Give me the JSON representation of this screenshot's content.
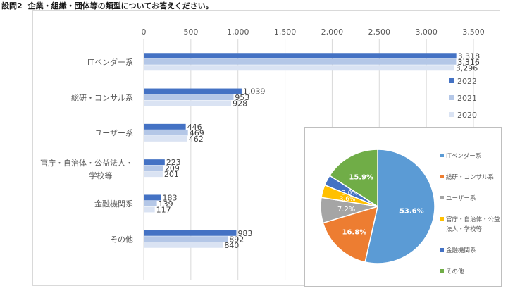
{
  "question": {
    "number": "設問2",
    "text": "企業・組織・団体等の類型についてお答えください。"
  },
  "chart_data": [
    {
      "type": "bar",
      "orientation": "horizontal",
      "categories": [
        "ITベンダー系",
        "総研・コンサル系",
        "ユーザー系",
        "官庁・自治体・公益法人・学校等",
        "金融機関系",
        "その他"
      ],
      "category_label_lines": [
        [
          "ITベンダー系"
        ],
        [
          "総研・コンサル系"
        ],
        [
          "ユーザー系"
        ],
        [
          "官庁・自治体・公益法人・",
          "学校等"
        ],
        [
          "金融機関系"
        ],
        [
          "その他"
        ]
      ],
      "series": [
        {
          "name": "2022",
          "values": [
            3318,
            1039,
            446,
            223,
            183,
            983
          ],
          "color": "#4472c4"
        },
        {
          "name": "2021",
          "values": [
            3316,
            953,
            469,
            209,
            139,
            892
          ],
          "color": "#b4c7e7"
        },
        {
          "name": "2020",
          "values": [
            3296,
            928,
            462,
            201,
            117,
            840
          ],
          "color": "#dae3f3"
        }
      ],
      "xlim": [
        0,
        3500
      ],
      "xticks": [
        0,
        500,
        1000,
        1500,
        2000,
        2500,
        3000,
        3500
      ],
      "xtick_labels": [
        "0",
        "500",
        "1,000",
        "1,500",
        "2,000",
        "2,500",
        "3,000",
        "3,500"
      ],
      "x_axis_position": "top",
      "grid": true,
      "legend": "right",
      "data_labels": true
    },
    {
      "type": "pie",
      "labels": [
        "ITベンダー系",
        "総研・コンサル系",
        "ユーザー系",
        "官庁・自治体・公益法人・学校等",
        "金融機関系",
        "その他"
      ],
      "legend_label_lines": [
        [
          "ITベンダー系"
        ],
        [
          "総研・コンサル系"
        ],
        [
          "ユーザー系"
        ],
        [
          "官庁・自治体・公益",
          "法人・学校等"
        ],
        [
          "金融機関系"
        ],
        [
          "その他"
        ]
      ],
      "values": [
        53.6,
        16.8,
        7.2,
        3.6,
        3.0,
        15.9
      ],
      "value_labels": [
        "53.6%",
        "16.8%",
        "7.2%",
        "3.6%",
        "3.0%",
        "15.9%"
      ],
      "colors": [
        "#5b9bd5",
        "#ed7d31",
        "#a5a5a5",
        "#ffc000",
        "#4472c4",
        "#70ad47"
      ],
      "legend": "right"
    }
  ]
}
